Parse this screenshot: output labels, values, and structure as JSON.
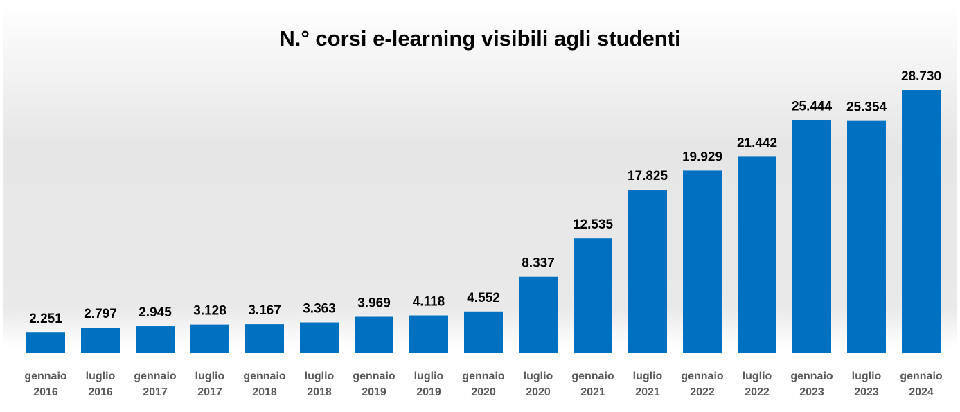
{
  "chart_data": {
    "type": "bar",
    "title": "N.° corsi e-learning visibili agli studenti",
    "categories": [
      "gennaio 2016",
      "luglio 2016",
      "gennaio 2017",
      "luglio 2017",
      "gennaio 2018",
      "luglio 2018",
      "gennaio 2019",
      "luglio 2019",
      "gennaio 2020",
      "luglio 2020",
      "gennaio 2021",
      "luglio 2021",
      "gennaio 2022",
      "luglio 2022",
      "gennaio 2023",
      "luglio 2023",
      "gennaio 2024"
    ],
    "values": [
      2251,
      2797,
      2945,
      3128,
      3167,
      3363,
      3969,
      4118,
      4552,
      8337,
      12535,
      17825,
      19929,
      21442,
      25444,
      25354,
      28730
    ],
    "value_labels": [
      "2.251",
      "2.797",
      "2.945",
      "3.128",
      "3.167",
      "3.363",
      "3.969",
      "4.118",
      "4.552",
      "8.337",
      "12.535",
      "17.825",
      "19.929",
      "21.442",
      "25.444",
      "25.354",
      "28.730"
    ],
    "color": "#0070c0"
  }
}
